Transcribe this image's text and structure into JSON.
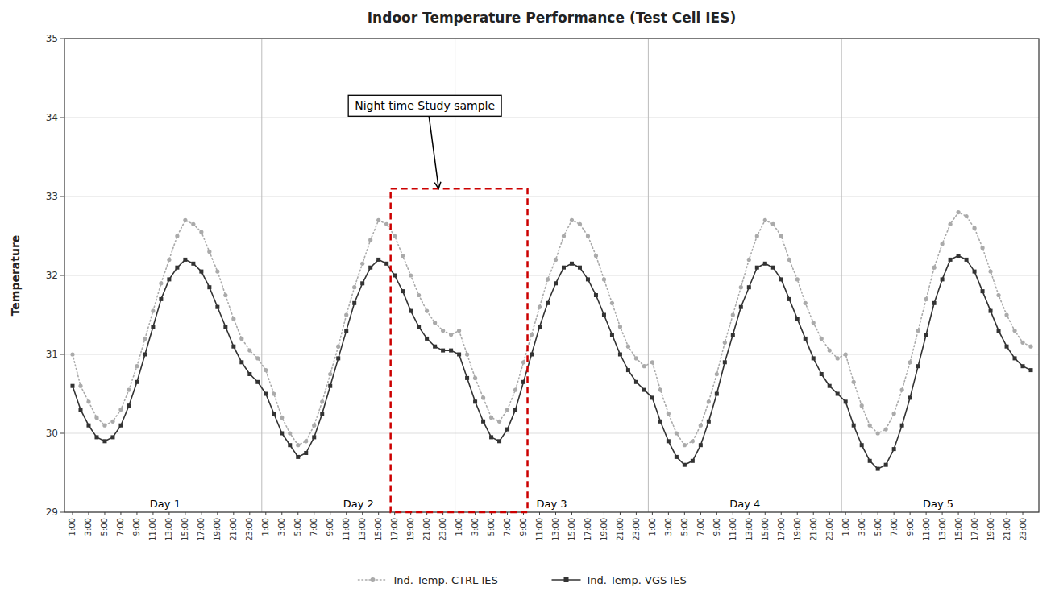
{
  "chart_data": {
    "type": "line",
    "title": "Indoor Temperature Performance (Test Cell IES)",
    "y_label": "Temperature",
    "ylim": [
      29,
      35
    ],
    "yticks": [
      29,
      30,
      31,
      32,
      33,
      34,
      35
    ],
    "grid": "y",
    "legend": "bottom",
    "day_labels": [
      "Day 1",
      "Day 2",
      "Day 3",
      "Day 4",
      "Day 5"
    ],
    "annotation": "Night time Study sample",
    "categories": [
      "1:00",
      null,
      "3:00",
      null,
      "5:00",
      null,
      "7:00",
      null,
      "9:00",
      null,
      "11:00",
      null,
      "13:00",
      null,
      "15:00",
      null,
      "17:00",
      null,
      "19:00",
      null,
      "21:00",
      null,
      "23:00",
      null,
      "1:00",
      null,
      "3:00",
      null,
      "5:00",
      null,
      "7:00",
      null,
      "9:00",
      null,
      "11:00",
      null,
      "13:00",
      null,
      "15:00",
      null,
      "17:00",
      null,
      "19:00",
      null,
      "21:00",
      null,
      "23:00",
      null,
      "1:00",
      null,
      "3:00",
      null,
      "5:00",
      null,
      "7:00",
      null,
      "9:00",
      null,
      "11:00",
      null,
      "13:00",
      null,
      "15:00",
      null,
      "17:00",
      null,
      "19:00",
      null,
      "21:00",
      null,
      "23:00",
      null,
      "1:00",
      null,
      "3:00",
      null,
      "5:00",
      null,
      "7:00",
      null,
      "9:00",
      null,
      "11:00",
      null,
      "13:00",
      null,
      "15:00",
      null,
      "17:00",
      null,
      "19:00",
      null,
      "21:00",
      null,
      "23:00",
      null,
      "1:00",
      null,
      "3:00",
      null,
      "5:00",
      null,
      "7:00",
      null,
      "9:00",
      null,
      "11:00",
      null,
      "13:00",
      null,
      "15:00",
      null,
      "17:00",
      null,
      "19:00",
      null,
      "21:00",
      null,
      "23:00",
      null
    ],
    "series": [
      {
        "name": "Ind. Temp. CTRL IES",
        "color": "#aaaaaa",
        "marker": "circle",
        "line_style": "dotted",
        "values": [
          31.0,
          30.6,
          30.4,
          30.2,
          30.1,
          30.15,
          30.3,
          30.55,
          30.85,
          31.2,
          31.55,
          31.9,
          32.2,
          32.5,
          32.7,
          32.65,
          32.55,
          32.3,
          32.05,
          31.75,
          31.45,
          31.2,
          31.05,
          30.95,
          30.8,
          30.5,
          30.2,
          30.0,
          29.85,
          29.9,
          30.1,
          30.4,
          30.75,
          31.1,
          31.5,
          31.85,
          32.15,
          32.45,
          32.7,
          32.65,
          32.5,
          32.25,
          32.0,
          31.75,
          31.55,
          31.4,
          31.3,
          31.25,
          31.3,
          31.0,
          30.7,
          30.45,
          30.2,
          30.15,
          30.3,
          30.55,
          30.9,
          31.25,
          31.6,
          31.95,
          32.2,
          32.5,
          32.7,
          32.65,
          32.5,
          32.25,
          31.95,
          31.65,
          31.35,
          31.1,
          30.95,
          30.85,
          30.9,
          30.55,
          30.25,
          30.0,
          29.85,
          29.9,
          30.1,
          30.4,
          30.75,
          31.15,
          31.5,
          31.85,
          32.2,
          32.5,
          32.7,
          32.65,
          32.5,
          32.2,
          31.95,
          31.65,
          31.4,
          31.2,
          31.05,
          30.95,
          31.0,
          30.65,
          30.35,
          30.1,
          30.0,
          30.05,
          30.25,
          30.55,
          30.9,
          31.3,
          31.7,
          32.1,
          32.4,
          32.65,
          32.8,
          32.75,
          32.6,
          32.35,
          32.05,
          31.75,
          31.5,
          31.3,
          31.15,
          31.1
        ]
      },
      {
        "name": "Ind. Temp. VGS IES",
        "color": "#333333",
        "marker": "square",
        "line_style": "solid",
        "values": [
          30.6,
          30.3,
          30.1,
          29.95,
          29.9,
          29.95,
          30.1,
          30.35,
          30.65,
          31.0,
          31.35,
          31.7,
          31.95,
          32.1,
          32.2,
          32.15,
          32.05,
          31.85,
          31.6,
          31.35,
          31.1,
          30.9,
          30.75,
          30.65,
          30.5,
          30.25,
          30.0,
          29.85,
          29.7,
          29.75,
          29.95,
          30.25,
          30.6,
          30.95,
          31.3,
          31.65,
          31.9,
          32.1,
          32.2,
          32.15,
          32.0,
          31.8,
          31.55,
          31.35,
          31.2,
          31.1,
          31.05,
          31.05,
          31.0,
          30.7,
          30.4,
          30.15,
          29.95,
          29.9,
          30.05,
          30.3,
          30.65,
          31.0,
          31.35,
          31.65,
          31.9,
          32.1,
          32.15,
          32.1,
          31.95,
          31.75,
          31.5,
          31.25,
          31.0,
          30.8,
          30.65,
          30.55,
          30.45,
          30.15,
          29.9,
          29.7,
          29.6,
          29.65,
          29.85,
          30.15,
          30.5,
          30.9,
          31.25,
          31.6,
          31.85,
          32.1,
          32.15,
          32.1,
          31.95,
          31.7,
          31.45,
          31.2,
          30.95,
          30.75,
          30.6,
          30.5,
          30.4,
          30.1,
          29.85,
          29.65,
          29.55,
          29.6,
          29.8,
          30.1,
          30.45,
          30.85,
          31.25,
          31.65,
          31.95,
          32.2,
          32.25,
          32.2,
          32.05,
          31.8,
          31.55,
          31.3,
          31.1,
          30.95,
          30.85,
          30.8
        ]
      }
    ]
  }
}
